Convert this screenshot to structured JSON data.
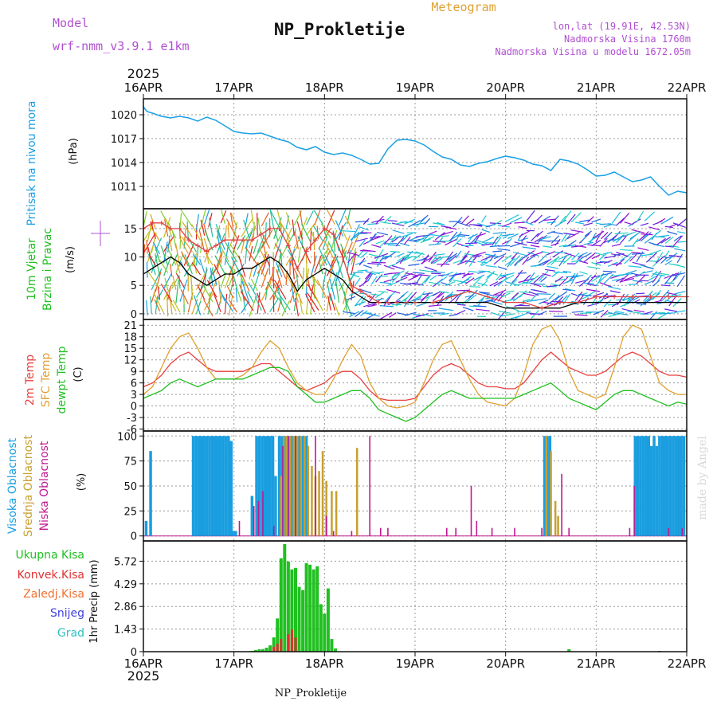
{
  "header": {
    "model_label": "Model",
    "model_name": "wrf-nmm_v3.9.1 e1km",
    "product": "Meteogram",
    "station": "NP_Prokletije",
    "coords": "lon,lat (19.91E, 42.53N)",
    "elevation": "Nadmorska Visina 1760m",
    "model_elevation": "Nadmorska Visina u modelu 1672.05m",
    "footer_station": "NP_Prokletije",
    "credit": "made by Angel"
  },
  "colors": {
    "pressure": "#1aa0e6",
    "wind_avg": "#000000",
    "gust": "#e04040",
    "temp2m": "#e84040",
    "sfc_temp": "#e0a030",
    "dewpt": "#20c020",
    "cloud_high": "#1a9ee0",
    "cloud_mid": "#c8a030",
    "cloud_low": "#c01890",
    "precip_total": "#20c020",
    "precip_conv": "#e03030",
    "magenta_label": "#b050d0"
  },
  "time_axis": {
    "year": "2025",
    "ticks": [
      "16APR",
      "17APR",
      "18APR",
      "19APR",
      "20APR",
      "21APR",
      "22APR"
    ]
  },
  "chart_data": [
    {
      "type": "line",
      "panel": "pressure",
      "ylabel": "(hPa)",
      "side_labels": [
        "Pritisak na nivou mora"
      ],
      "yticks": [
        1011,
        1014,
        1017,
        1020
      ],
      "ylim": [
        1008.2,
        1022
      ],
      "x_days": [
        0,
        0.04,
        0.1,
        0.2,
        0.3,
        0.4,
        0.5,
        0.6,
        0.7,
        0.8,
        0.9,
        1.0,
        1.1,
        1.2,
        1.3,
        1.4,
        1.5,
        1.6,
        1.7,
        1.8,
        1.9,
        2.0,
        2.1,
        2.2,
        2.3,
        2.4,
        2.5,
        2.6,
        2.7,
        2.8,
        2.9,
        3.0,
        3.1,
        3.2,
        3.3,
        3.4,
        3.5,
        3.6,
        3.7,
        3.8,
        3.9,
        4.0,
        4.1,
        4.2,
        4.3,
        4.4,
        4.5,
        4.6,
        4.7,
        4.8,
        4.9,
        5.0,
        5.1,
        5.2,
        5.3,
        5.4,
        5.5,
        5.6,
        5.7,
        5.8,
        5.9,
        6.0
      ],
      "series": [
        {
          "values": [
            1021.0,
            1020.4,
            1020.2,
            1019.8,
            1019.6,
            1019.8,
            1019.6,
            1019.2,
            1019.7,
            1019.3,
            1018.6,
            1017.9,
            1017.7,
            1017.6,
            1017.7,
            1017.3,
            1016.9,
            1016.6,
            1015.9,
            1015.6,
            1016.0,
            1015.3,
            1015.0,
            1015.2,
            1014.9,
            1014.4,
            1013.8,
            1013.9,
            1015.7,
            1016.8,
            1016.9,
            1016.7,
            1016.2,
            1015.4,
            1014.7,
            1014.4,
            1013.7,
            1013.5,
            1013.9,
            1014.1,
            1014.5,
            1014.8,
            1014.6,
            1014.3,
            1013.8,
            1013.6,
            1013.0,
            1014.4,
            1014.2,
            1013.8,
            1013.1,
            1012.3,
            1012.4,
            1012.8,
            1012.2,
            1011.6,
            1011.8,
            1012.2,
            1011.0,
            1009.9,
            1010.4,
            1010.2
          ]
        }
      ]
    },
    {
      "type": "line",
      "panel": "wind",
      "ylabel": "(m/s)",
      "side_labels": [
        "10m Vjetar",
        "Brzina i Pravac"
      ],
      "yticks": [
        0,
        5,
        10,
        15
      ],
      "ylim": [
        -1,
        18.5
      ],
      "x_days": [
        0,
        0.1,
        0.2,
        0.3,
        0.4,
        0.5,
        0.6,
        0.7,
        0.8,
        0.9,
        1.0,
        1.1,
        1.2,
        1.3,
        1.4,
        1.5,
        1.6,
        1.7,
        1.8,
        1.9,
        2.0,
        2.1,
        2.2,
        2.3,
        2.4,
        2.5,
        2.6,
        2.7,
        2.8,
        2.9,
        3.0,
        3.2,
        3.4,
        3.6,
        3.8,
        4.0,
        4.2,
        4.4,
        4.6,
        4.8,
        5.0,
        5.2,
        5.4,
        5.6,
        5.8,
        6.0
      ],
      "series": [
        {
          "name": "avg",
          "values": [
            7,
            8,
            9,
            10,
            9,
            7,
            6,
            5,
            6,
            7,
            7,
            8,
            8,
            9,
            10,
            9,
            7,
            4,
            6,
            7,
            8,
            7,
            6,
            4,
            3,
            2,
            2,
            2,
            2,
            2,
            2,
            2,
            2,
            2,
            2,
            1,
            1,
            1,
            1,
            2,
            2,
            2,
            2,
            2,
            2,
            2
          ]
        },
        {
          "name": "gust",
          "values": [
            15,
            16,
            16,
            15,
            15,
            13,
            12,
            11,
            12,
            13,
            13,
            13,
            13,
            14,
            15,
            15,
            12,
            8,
            11,
            13,
            15,
            14,
            10,
            5,
            4,
            3,
            2,
            2,
            2,
            2,
            2,
            2,
            3,
            4,
            3,
            2,
            2,
            1,
            2,
            2,
            3,
            3,
            3,
            3,
            3,
            3
          ]
        }
      ]
    },
    {
      "type": "line",
      "panel": "temperature",
      "ylabel": "(C)",
      "side_labels": [
        "2m Temp",
        "SFC Temp",
        "dewpt Temp"
      ],
      "yticks": [
        -6,
        -3,
        0,
        3,
        6,
        9,
        12,
        15,
        18,
        21
      ],
      "ylim": [
        -6.5,
        22.5
      ],
      "x_days": [
        0,
        0.1,
        0.2,
        0.3,
        0.4,
        0.5,
        0.6,
        0.7,
        0.8,
        0.9,
        1.0,
        1.1,
        1.2,
        1.3,
        1.4,
        1.5,
        1.6,
        1.7,
        1.8,
        1.9,
        2.0,
        2.1,
        2.2,
        2.3,
        2.4,
        2.5,
        2.6,
        2.7,
        2.8,
        2.9,
        3.0,
        3.1,
        3.2,
        3.3,
        3.4,
        3.5,
        3.6,
        3.7,
        3.8,
        3.9,
        4.0,
        4.1,
        4.2,
        4.3,
        4.4,
        4.5,
        4.6,
        4.7,
        4.8,
        4.9,
        5.0,
        5.1,
        5.2,
        5.3,
        5.4,
        5.5,
        5.6,
        5.7,
        5.8,
        5.9,
        6.0
      ],
      "series": [
        {
          "name": "2m Temp",
          "values": [
            5,
            6,
            8,
            11,
            13,
            14,
            12,
            10,
            9,
            9,
            9,
            9,
            10,
            11,
            11,
            9,
            7,
            5,
            4,
            5,
            6,
            8,
            9,
            9,
            7,
            4,
            2,
            1.5,
            1.5,
            1.5,
            2,
            5,
            8,
            10,
            11,
            10,
            8,
            6,
            5,
            5,
            4.5,
            4.5,
            6,
            9,
            12,
            14,
            12,
            10,
            9,
            8,
            8,
            9,
            11,
            13,
            14,
            13,
            11,
            9,
            8,
            8,
            7.5
          ]
        },
        {
          "name": "SFC Temp",
          "values": [
            3,
            5,
            10,
            15,
            18,
            19,
            15,
            10,
            7,
            7,
            7,
            8,
            10,
            14,
            17,
            15,
            10,
            6,
            4,
            3,
            3,
            7,
            12,
            16,
            13,
            6,
            2,
            0,
            -0.5,
            0,
            1,
            6,
            12,
            16,
            17,
            12,
            7,
            3,
            1,
            0.5,
            0,
            2,
            8,
            16,
            20,
            21,
            17,
            9,
            4,
            3,
            2,
            3,
            10,
            18,
            21,
            20,
            13,
            6,
            4,
            3,
            3
          ]
        },
        {
          "name": "dewpt Temp",
          "values": [
            2,
            3,
            4,
            6,
            7,
            6,
            5,
            6,
            7,
            7,
            7,
            7,
            8,
            9,
            10,
            10,
            9,
            5,
            3,
            1,
            1,
            2,
            3,
            4,
            4,
            2,
            -1,
            -2,
            -3,
            -4,
            -3,
            -1,
            1,
            3,
            4,
            3,
            2,
            2,
            2,
            2,
            2,
            2,
            3,
            4,
            5,
            6,
            4,
            2,
            1,
            0,
            -1,
            1,
            3,
            4,
            4,
            3,
            2,
            1,
            0,
            1,
            0.5
          ]
        }
      ]
    },
    {
      "type": "bar",
      "panel": "clouds",
      "ylabel": "(%)",
      "side_labels": [
        "Visoka Oblacnost",
        "Srednja Oblacnost",
        "Niska Oblacnost"
      ],
      "yticks": [
        0,
        25,
        50,
        75,
        100
      ],
      "ylim": [
        -5,
        105
      ],
      "series": [
        {
          "name": "Visoka Oblacnost",
          "x_days": [
            0.03,
            0.08,
            0.55,
            0.58,
            0.61,
            0.64,
            0.67,
            0.7,
            0.73,
            0.76,
            0.79,
            0.82,
            0.85,
            0.88,
            0.91,
            0.94,
            0.97,
            1.0,
            1.02,
            1.2,
            1.25,
            1.28,
            1.31,
            1.34,
            1.37,
            1.4,
            1.43,
            1.46,
            1.5,
            1.53,
            1.56,
            1.59,
            1.62,
            1.65,
            1.68,
            1.71,
            1.74,
            1.77,
            1.8,
            4.43,
            4.46,
            4.49,
            5.43,
            5.46,
            5.49,
            5.52,
            5.55,
            5.58,
            5.61,
            5.64,
            5.67,
            5.7,
            5.73,
            5.76,
            5.79,
            5.82,
            5.85,
            5.88,
            5.91,
            5.94,
            5.97
          ],
          "values": [
            15,
            85,
            100,
            100,
            100,
            100,
            100,
            100,
            100,
            100,
            100,
            100,
            100,
            100,
            100,
            100,
            95,
            5,
            5,
            40,
            100,
            100,
            100,
            100,
            100,
            100,
            100,
            60,
            100,
            100,
            100,
            100,
            100,
            100,
            100,
            100,
            100,
            100,
            100,
            100,
            100,
            100,
            100,
            100,
            100,
            100,
            100,
            100,
            90,
            100,
            90,
            100,
            100,
            100,
            100,
            100,
            100,
            100,
            100,
            100,
            100
          ]
        },
        {
          "name": "Srednja Oblacnost",
          "x_days": [
            1.52,
            1.55,
            1.58,
            1.62,
            1.66,
            1.7,
            1.74,
            1.78,
            1.82,
            1.86,
            1.9,
            1.94,
            1.98,
            2.02,
            2.08,
            2.13,
            2.36,
            4.45,
            4.5,
            4.55,
            4.58
          ],
          "values": [
            60,
            100,
            100,
            100,
            100,
            100,
            100,
            100,
            90,
            70,
            60,
            65,
            85,
            55,
            45,
            45,
            88,
            100,
            85,
            35,
            20
          ]
        },
        {
          "name": "Niska Oblacnost",
          "x_days": [
            1.06,
            1.22,
            1.27,
            1.32,
            1.44,
            1.54,
            1.6,
            1.68,
            1.9,
            2.02,
            2.1,
            2.3,
            2.5,
            2.62,
            2.7,
            3.35,
            3.45,
            3.62,
            3.68,
            3.85,
            4.1,
            4.4,
            4.62,
            4.7,
            5.37,
            5.42,
            5.8,
            5.95
          ],
          "values": [
            15,
            30,
            35,
            45,
            10,
            90,
            100,
            100,
            100,
            20,
            5,
            5,
            100,
            8,
            8,
            8,
            8,
            50,
            15,
            8,
            8,
            8,
            62,
            8,
            8,
            50,
            8,
            8
          ]
        }
      ]
    },
    {
      "type": "bar",
      "panel": "precipitation",
      "ylabel": "1hr Precip (mm)",
      "side_labels": [
        "Ukupna Kisa",
        "Konvek.Kisa",
        "Zaledj.Kisa",
        "Snijeg",
        "Grad"
      ],
      "yticks": [
        0,
        1.43,
        2.86,
        4.29,
        5.72
      ],
      "ylim": [
        0,
        7.0
      ],
      "series": [
        {
          "name": "Ukupna Kisa",
          "x_days": [
            1.2,
            1.24,
            1.28,
            1.32,
            1.36,
            1.4,
            1.44,
            1.48,
            1.52,
            1.56,
            1.6,
            1.64,
            1.68,
            1.72,
            1.76,
            1.8,
            1.84,
            1.88,
            1.92,
            1.96,
            2.0,
            2.04,
            2.08,
            2.12,
            4.7,
            5.7
          ],
          "values": [
            0.05,
            0.1,
            0.15,
            0.15,
            0.25,
            0.4,
            0.9,
            2.1,
            5.9,
            6.8,
            5.7,
            5.2,
            5.3,
            4.1,
            3.9,
            5.6,
            5.5,
            5.2,
            5.4,
            3.0,
            2.4,
            4.0,
            0.8,
            0.2,
            0.15,
            0.05
          ]
        },
        {
          "name": "Konvek.Kisa",
          "x_days": [
            1.44,
            1.48,
            1.52,
            1.6,
            1.64,
            1.68
          ],
          "values": [
            0.3,
            0.5,
            0.8,
            1.1,
            1.4,
            0.9
          ]
        }
      ]
    }
  ]
}
